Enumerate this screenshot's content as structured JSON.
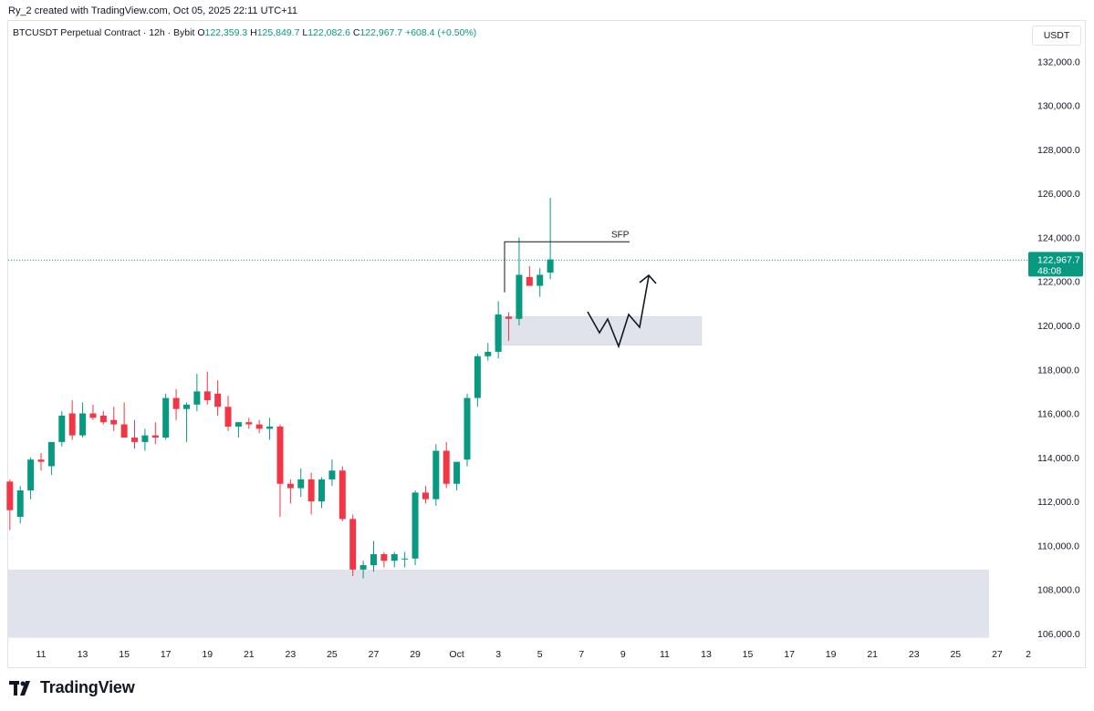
{
  "header": {
    "creator": "Ry_2 created with TradingView.com, Oct 05, 2025 22:11 UTC+11"
  },
  "legend": {
    "symbol": "BTCUSDT Perpetual Contract · 12h · Bybit",
    "o_label": "O",
    "o_value": "122,359.3",
    "h_label": "H",
    "h_value": "125,849.7",
    "l_label": "L",
    "l_value": "122,082.6",
    "c_label": "C",
    "c_value": "122,967.7",
    "change": "+608.4 (+0.50%)"
  },
  "currency_button": "USDT",
  "brand": {
    "name": "TradingView"
  },
  "colors": {
    "up": "#089981",
    "down": "#f23645",
    "zone": "#e0e3eb",
    "price_line": "#089981"
  },
  "chart_data": {
    "type": "candlestick",
    "title": "BTCUSDT Perpetual Contract · 12h · Bybit",
    "ylim": [
      105500,
      133500
    ],
    "y_ticks": [
      "106,000.0",
      "108,000.0",
      "110,000.0",
      "112,000.0",
      "114,000.0",
      "116,000.0",
      "118,000.0",
      "120,000.0",
      "122,000.0",
      "124,000.0",
      "126,000.0",
      "128,000.0",
      "130,000.0",
      "132,000.0"
    ],
    "y_tick_values": [
      106000,
      108000,
      110000,
      112000,
      114000,
      116000,
      118000,
      120000,
      122000,
      124000,
      126000,
      128000,
      130000,
      132000
    ],
    "x_ticks": [
      "11",
      "13",
      "15",
      "17",
      "19",
      "21",
      "23",
      "25",
      "27",
      "29",
      "Oct",
      "3",
      "5",
      "7",
      "9",
      "11",
      "13",
      "15",
      "17",
      "19",
      "21",
      "23",
      "25",
      "27",
      "2"
    ],
    "x_tick_dates": [
      "2025-09-11",
      "2025-09-13",
      "2025-09-15",
      "2025-09-17",
      "2025-09-19",
      "2025-09-21",
      "2025-09-23",
      "2025-09-25",
      "2025-09-27",
      "2025-09-29",
      "2025-10-01",
      "2025-10-03",
      "2025-10-05",
      "2025-10-07",
      "2025-10-09",
      "2025-10-11",
      "2025-10-13",
      "2025-10-15",
      "2025-10-17",
      "2025-10-19",
      "2025-10-21",
      "2025-10-23",
      "2025-10-25",
      "2025-10-27",
      "2025-11-02"
    ],
    "first_candle": "2025-09-09 12:00",
    "interval_hours": 12,
    "grid": false,
    "candles": [
      [
        112900,
        113000,
        110700,
        111600
      ],
      [
        111300,
        112700,
        111000,
        112500
      ],
      [
        112500,
        114000,
        112100,
        113900
      ],
      [
        113900,
        114200,
        113400,
        113800
      ],
      [
        113600,
        114500,
        113200,
        114700
      ],
      [
        114700,
        116100,
        114500,
        115900
      ],
      [
        116000,
        116600,
        114800,
        115000
      ],
      [
        115000,
        116500,
        114900,
        116000
      ],
      [
        116000,
        116400,
        115700,
        115800
      ],
      [
        115900,
        116100,
        115500,
        115600
      ],
      [
        115700,
        116300,
        115200,
        115500
      ],
      [
        115500,
        116500,
        114900,
        114900
      ],
      [
        114900,
        115700,
        114400,
        114700
      ],
      [
        114700,
        115300,
        114300,
        115000
      ],
      [
        115000,
        115600,
        114600,
        114900
      ],
      [
        114900,
        116900,
        114800,
        116700
      ],
      [
        116700,
        117100,
        115700,
        116200
      ],
      [
        116200,
        116500,
        114700,
        116400
      ],
      [
        116400,
        117800,
        116100,
        117000
      ],
      [
        117000,
        117900,
        116400,
        116600
      ],
      [
        116900,
        117500,
        115900,
        116300
      ],
      [
        116300,
        116800,
        115200,
        115400
      ],
      [
        115400,
        115600,
        114900,
        115600
      ],
      [
        115600,
        115800,
        115300,
        115500
      ],
      [
        115500,
        115700,
        115100,
        115300
      ],
      [
        115300,
        115800,
        114800,
        115400
      ],
      [
        115400,
        115500,
        111300,
        112800
      ],
      [
        112800,
        113000,
        111900,
        112600
      ],
      [
        112600,
        113500,
        112200,
        113000
      ],
      [
        113000,
        113300,
        111400,
        112000
      ],
      [
        112000,
        113100,
        111700,
        113000
      ],
      [
        113000,
        113900,
        112700,
        113400
      ],
      [
        113400,
        113600,
        111100,
        111200
      ],
      [
        111200,
        111400,
        108600,
        108900
      ],
      [
        108900,
        109300,
        108500,
        109100
      ],
      [
        109100,
        110200,
        108800,
        109600
      ],
      [
        109600,
        109700,
        109000,
        109300
      ],
      [
        109300,
        109700,
        109000,
        109600
      ],
      [
        109400,
        109700,
        109000,
        109400
      ],
      [
        109400,
        112500,
        109100,
        112400
      ],
      [
        112400,
        112700,
        111900,
        112100
      ],
      [
        112100,
        114600,
        111800,
        114300
      ],
      [
        114300,
        114700,
        112600,
        112800
      ],
      [
        112800,
        113700,
        112500,
        113800
      ],
      [
        113900,
        116900,
        113600,
        116700
      ],
      [
        116700,
        118700,
        116300,
        118600
      ],
      [
        118600,
        119200,
        118400,
        118800
      ],
      [
        118800,
        121100,
        118500,
        120500
      ],
      [
        120400,
        120600,
        119300,
        120300
      ],
      [
        120300,
        124000,
        120000,
        122300
      ],
      [
        122200,
        122700,
        121800,
        121800
      ],
      [
        121800,
        122600,
        121300,
        122300
      ],
      [
        122400,
        125800,
        122100,
        123000
      ]
    ],
    "annotations": {
      "sfp_label": "SFP",
      "sfp_level": 123800,
      "current_price": "122,967.7",
      "countdown": "48:08",
      "demand_zone_upper": {
        "from": 120400,
        "to": 119100
      },
      "demand_zone_lower": {
        "from": 108900,
        "to": 105800
      }
    }
  }
}
